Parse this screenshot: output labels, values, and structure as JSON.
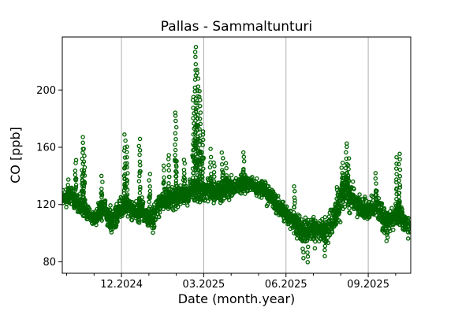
{
  "figure": {
    "background": "#ffffff"
  },
  "chart_data": {
    "type": "scatter",
    "title": "Pallas - Sammaltunturi",
    "xlabel": "Date (month.year)",
    "ylabel": "CO [ppb]",
    "text_color": "#000000",
    "frame_color": "#000000",
    "grid": {
      "axis": "x",
      "color": "#b0b0b0",
      "on": true
    },
    "marker": {
      "shape": "open-circle",
      "color": "#006400",
      "radius_px": 2.1,
      "stroke_px": 1.3
    },
    "xlim_months_from_dec2024": [
      -2.16,
      10.55
    ],
    "ylim": [
      72,
      237
    ],
    "y_ticks": [
      "80",
      "120",
      "160",
      "200"
    ],
    "y_tick_values": [
      80,
      120,
      160,
      200
    ],
    "x_major_ticks": [
      {
        "t": 0,
        "label": "12.2024"
      },
      {
        "t": 3,
        "label": "03.2025"
      },
      {
        "t": 6,
        "label": "06.2025"
      },
      {
        "t": 9,
        "label": "09.2025"
      }
    ],
    "x_minor_ticks": [
      -2,
      -1,
      1,
      2,
      4,
      5,
      7,
      8,
      10
    ],
    "seed": 20250913,
    "points_per_bin": 34,
    "baseline_weekly": [
      [
        -2.05,
        124,
        6
      ],
      [
        -1.9,
        126,
        7
      ],
      [
        -1.75,
        124,
        7
      ],
      [
        -1.6,
        121,
        6
      ],
      [
        -1.45,
        119,
        6
      ],
      [
        -1.3,
        116,
        6
      ],
      [
        -1.15,
        112,
        5
      ],
      [
        -1.0,
        111,
        5
      ],
      [
        -0.85,
        113,
        5
      ],
      [
        -0.7,
        118,
        6
      ],
      [
        -0.55,
        114,
        6
      ],
      [
        -0.4,
        109,
        6
      ],
      [
        -0.25,
        110,
        6
      ],
      [
        -0.1,
        115,
        6
      ],
      [
        0.05,
        120,
        7
      ],
      [
        0.2,
        119,
        7
      ],
      [
        0.35,
        116,
        6
      ],
      [
        0.5,
        113,
        6
      ],
      [
        0.65,
        117,
        7
      ],
      [
        0.8,
        114,
        6
      ],
      [
        0.95,
        112,
        6
      ],
      [
        1.1,
        109,
        6
      ],
      [
        1.25,
        116,
        7
      ],
      [
        1.4,
        121,
        7
      ],
      [
        1.55,
        123,
        7
      ],
      [
        1.7,
        124,
        8
      ],
      [
        1.85,
        122,
        7
      ],
      [
        2.0,
        125,
        8
      ],
      [
        2.15,
        128,
        8
      ],
      [
        2.3,
        126,
        8
      ],
      [
        2.45,
        127,
        8
      ],
      [
        2.6,
        130,
        9
      ],
      [
        2.75,
        132,
        10
      ],
      [
        2.9,
        130,
        9
      ],
      [
        3.05,
        130,
        9
      ],
      [
        3.2,
        131,
        9
      ],
      [
        3.35,
        129,
        8
      ],
      [
        3.5,
        128,
        8
      ],
      [
        3.65,
        130,
        8
      ],
      [
        3.8,
        131,
        8
      ],
      [
        3.95,
        132,
        8
      ],
      [
        4.1,
        133,
        7
      ],
      [
        4.25,
        134,
        7
      ],
      [
        4.4,
        134,
        7
      ],
      [
        4.55,
        135,
        6
      ],
      [
        4.7,
        134,
        6
      ],
      [
        4.85,
        133,
        6
      ],
      [
        5.0,
        132,
        6
      ],
      [
        5.15,
        130,
        6
      ],
      [
        5.3,
        127,
        6
      ],
      [
        5.45,
        125,
        6
      ],
      [
        5.6,
        122,
        6
      ],
      [
        5.75,
        118,
        6
      ],
      [
        5.9,
        115,
        6
      ],
      [
        6.05,
        112,
        6
      ],
      [
        6.2,
        109,
        6
      ],
      [
        6.35,
        106,
        7
      ],
      [
        6.5,
        103,
        8
      ],
      [
        6.65,
        100,
        9
      ],
      [
        6.8,
        101,
        9
      ],
      [
        6.95,
        104,
        8
      ],
      [
        7.1,
        103,
        8
      ],
      [
        7.25,
        102,
        8
      ],
      [
        7.4,
        100,
        9
      ],
      [
        7.55,
        104,
        8
      ],
      [
        7.7,
        110,
        9
      ],
      [
        7.85,
        116,
        10
      ],
      [
        8.0,
        124,
        11
      ],
      [
        8.15,
        131,
        11
      ],
      [
        8.3,
        128,
        10
      ],
      [
        8.45,
        123,
        9
      ],
      [
        8.6,
        119,
        8
      ],
      [
        8.75,
        117,
        8
      ],
      [
        8.9,
        115,
        7
      ],
      [
        9.05,
        117,
        8
      ],
      [
        9.2,
        120,
        8
      ],
      [
        9.35,
        118,
        8
      ],
      [
        9.5,
        112,
        7
      ],
      [
        9.65,
        106,
        7
      ],
      [
        9.8,
        108,
        7
      ],
      [
        9.95,
        112,
        8
      ],
      [
        10.1,
        114,
        8
      ],
      [
        10.25,
        110,
        7
      ],
      [
        10.4,
        106,
        6
      ]
    ],
    "spikes": [
      [
        -1.93,
        137
      ],
      [
        -1.67,
        152
      ],
      [
        -1.42,
        167
      ],
      [
        -1.36,
        158
      ],
      [
        -0.72,
        139
      ],
      [
        0.12,
        168
      ],
      [
        0.2,
        160
      ],
      [
        0.66,
        165
      ],
      [
        1.02,
        141
      ],
      [
        1.55,
        147
      ],
      [
        1.72,
        155
      ],
      [
        1.98,
        185
      ],
      [
        2.28,
        152
      ],
      [
        2.62,
        196
      ],
      [
        2.7,
        230
      ],
      [
        2.78,
        215
      ],
      [
        2.86,
        200
      ],
      [
        2.96,
        172
      ],
      [
        3.25,
        158
      ],
      [
        3.38,
        150
      ],
      [
        3.68,
        156
      ],
      [
        3.82,
        148
      ],
      [
        4.45,
        157
      ],
      [
        6.3,
        133
      ],
      [
        8.05,
        150
      ],
      [
        8.2,
        163
      ],
      [
        8.28,
        152
      ],
      [
        9.28,
        142
      ],
      [
        10.02,
        153
      ],
      [
        10.14,
        155
      ]
    ],
    "dips": [
      [
        -0.38,
        100
      ],
      [
        1.12,
        101
      ],
      [
        6.62,
        83
      ],
      [
        6.78,
        80
      ],
      [
        7.05,
        90
      ],
      [
        7.42,
        84
      ],
      [
        9.68,
        94
      ],
      [
        10.45,
        97
      ]
    ]
  }
}
